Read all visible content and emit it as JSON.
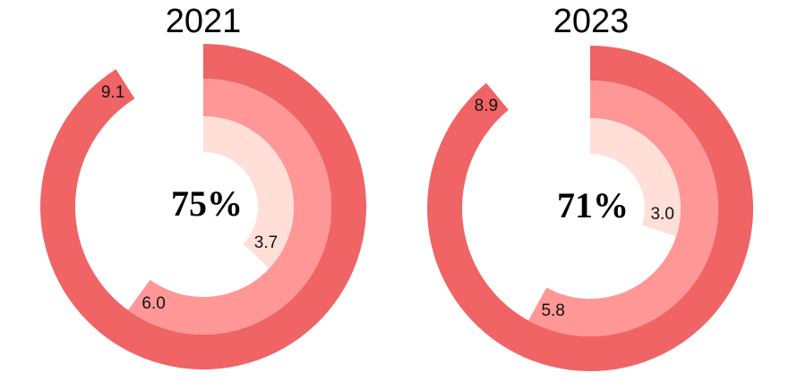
{
  "colors": {
    "outer": "#F06466",
    "middle": "#FF9797",
    "inner": "#FFDFD8",
    "background": "#FFFFFF",
    "text": "#000000"
  },
  "charts": [
    {
      "title": "2021",
      "center_label": "75%",
      "rings": [
        {
          "name": "outer",
          "value": 9.1,
          "label": "9.1"
        },
        {
          "name": "middle",
          "value": 6.0,
          "label": "6.0"
        },
        {
          "name": "inner",
          "value": 3.7,
          "label": "3.7"
        }
      ]
    },
    {
      "title": "2023",
      "center_label": "71%",
      "rings": [
        {
          "name": "outer",
          "value": 8.9,
          "label": "8.9"
        },
        {
          "name": "middle",
          "value": 5.8,
          "label": "5.8"
        },
        {
          "name": "inner",
          "value": 3.0,
          "label": "3.0"
        }
      ]
    }
  ],
  "chart_data": [
    {
      "type": "radial-bar",
      "title": "2021",
      "center_annotation": "75%",
      "categories": [
        "outer ring",
        "middle ring",
        "inner ring"
      ],
      "values": [
        9.1,
        6.0,
        3.7
      ],
      "scale_max": 10,
      "start_angle_deg": 0,
      "direction": "clockwise",
      "legend": null
    },
    {
      "type": "radial-bar",
      "title": "2023",
      "center_annotation": "71%",
      "categories": [
        "outer ring",
        "middle ring",
        "inner ring"
      ],
      "values": [
        8.9,
        5.8,
        3.0
      ],
      "scale_max": 10,
      "start_angle_deg": 0,
      "direction": "clockwise",
      "legend": null
    }
  ]
}
